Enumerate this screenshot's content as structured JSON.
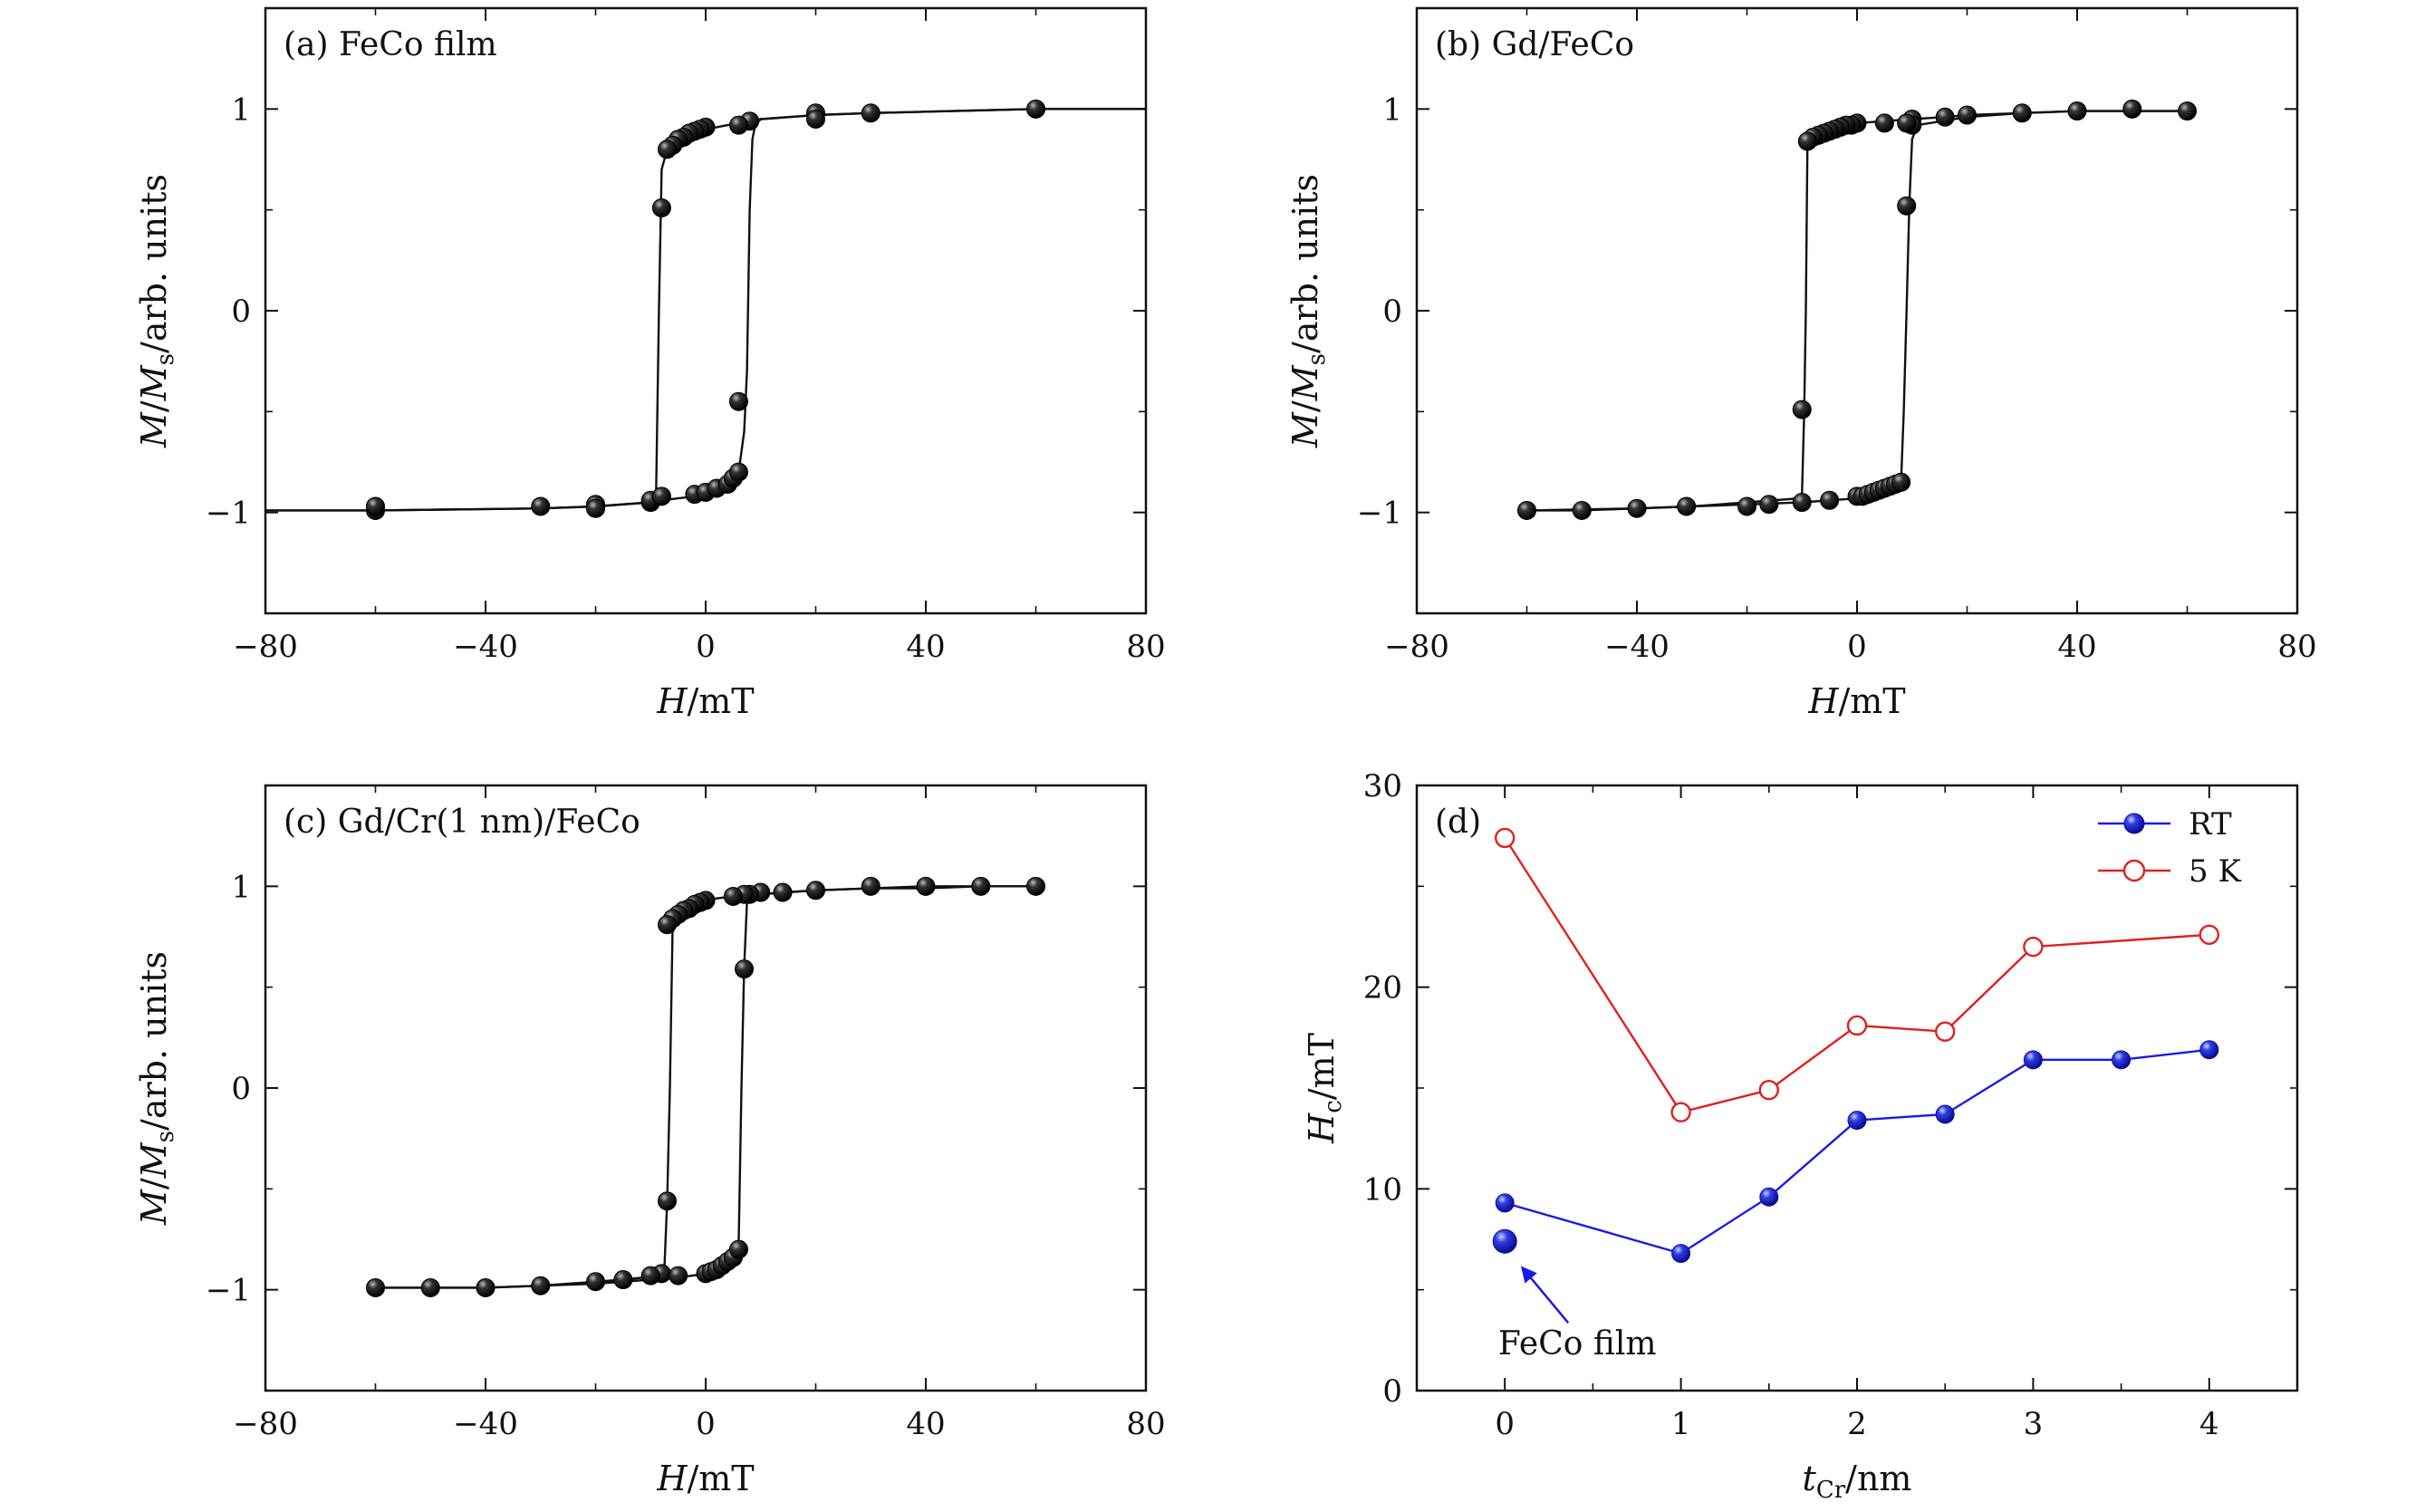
{
  "chart_data": [
    {
      "panel": "a",
      "type": "line",
      "title": "(a) FeCo film",
      "xlabel": "H/mT",
      "ylabel": "M/Ms/arb. units",
      "ylabel_parts": {
        "m": "M",
        "sep1": "/",
        "ms": "M",
        "ms_sub": "s",
        "rest": "/arb. units"
      },
      "xlabel_parts": {
        "var": "H",
        "rest": "/mT"
      },
      "xlim": [
        -80,
        80
      ],
      "ylim": [
        -1.5,
        1.5
      ],
      "xticks": [
        -80,
        -40,
        0,
        40,
        80
      ],
      "xtick_labels": [
        "−80",
        "−40",
        "0",
        "40",
        "80"
      ],
      "yticks": [
        -1,
        0,
        1
      ],
      "ytick_labels": [
        "−1",
        "0",
        "1"
      ],
      "grid": false,
      "series": [
        {
          "role": "descending branch",
          "x": [
            80,
            60,
            30,
            20,
            10,
            6,
            4,
            2,
            0,
            -1,
            -2,
            -3,
            -4,
            -5,
            -6,
            -7,
            -8,
            -8.5,
            -9,
            -9.5,
            -10,
            -20,
            -30,
            -60,
            -80
          ],
          "y": [
            1.0,
            1.0,
            0.98,
            0.97,
            0.95,
            0.93,
            0.92,
            0.91,
            0.9,
            0.89,
            0.88,
            0.87,
            0.86,
            0.84,
            0.82,
            0.8,
            0.7,
            0.0,
            -0.9,
            -0.93,
            -0.95,
            -0.97,
            -0.98,
            -0.99,
            -0.99
          ]
        },
        {
          "role": "ascending branch",
          "x": [
            -80,
            -60,
            -30,
            -20,
            -10,
            -8,
            -5,
            -2,
            0,
            2,
            4,
            5,
            6,
            7,
            7.5,
            8,
            8.5,
            9,
            10,
            20,
            30,
            60,
            80
          ],
          "y": [
            -0.99,
            -0.99,
            -0.98,
            -0.97,
            -0.95,
            -0.94,
            -0.93,
            -0.92,
            -0.9,
            -0.88,
            -0.86,
            -0.84,
            -0.8,
            -0.6,
            -0.3,
            0.5,
            0.85,
            0.92,
            0.95,
            0.97,
            0.98,
            1.0,
            1.0
          ]
        },
        {
          "role": "markers",
          "x": [
            60,
            30,
            20,
            20,
            8,
            6,
            0,
            -1,
            -2,
            -3,
            -4,
            -5,
            -6,
            -7,
            -8,
            -10,
            -20,
            -20,
            -30,
            -60,
            -60,
            -10,
            -8,
            -2,
            0,
            2,
            4,
            5,
            6,
            6
          ],
          "y": [
            1.0,
            0.98,
            0.98,
            0.95,
            0.94,
            0.92,
            0.91,
            0.9,
            0.89,
            0.88,
            0.86,
            0.85,
            0.82,
            0.8,
            0.51,
            -0.95,
            -0.96,
            -0.98,
            -0.97,
            -0.99,
            -0.97,
            -0.94,
            -0.92,
            -0.91,
            -0.9,
            -0.88,
            -0.86,
            -0.83,
            -0.8,
            -0.45
          ]
        }
      ]
    },
    {
      "panel": "b",
      "type": "line",
      "title": "(b) Gd/FeCo",
      "xlabel": "H/mT",
      "ylabel": "M/Ms/arb. units",
      "ylabel_parts": {
        "m": "M",
        "sep1": "/",
        "ms": "M",
        "ms_sub": "s",
        "rest": "/arb. units"
      },
      "xlabel_parts": {
        "var": "H",
        "rest": "/mT"
      },
      "xlim": [
        -80,
        80
      ],
      "ylim": [
        -1.5,
        1.5
      ],
      "xticks": [
        -80,
        -40,
        0,
        40,
        80
      ],
      "xtick_labels": [
        "−80",
        "−40",
        "0",
        "40",
        "80"
      ],
      "yticks": [
        -1,
        0,
        1
      ],
      "ytick_labels": [
        "−1",
        "0",
        "1"
      ],
      "grid": false,
      "series": [
        {
          "role": "descending branch",
          "x": [
            60,
            50,
            40,
            30,
            20,
            16,
            10,
            5,
            0,
            -2,
            -4,
            -6,
            -8,
            -9,
            -9.3,
            -9.6,
            -10,
            -10.5,
            -20,
            -30,
            -40,
            -50,
            -60
          ],
          "y": [
            0.99,
            0.99,
            0.99,
            0.98,
            0.97,
            0.96,
            0.95,
            0.94,
            0.93,
            0.92,
            0.9,
            0.88,
            0.86,
            0.84,
            0.0,
            -0.5,
            -0.9,
            -0.93,
            -0.95,
            -0.97,
            -0.98,
            -0.99,
            -0.99
          ]
        },
        {
          "role": "ascending branch",
          "x": [
            -60,
            -40,
            -20,
            -10,
            -5,
            0,
            2,
            4,
            6,
            8,
            8.5,
            9,
            9.5,
            10,
            11,
            20,
            30,
            40,
            50,
            60
          ],
          "y": [
            -0.99,
            -0.98,
            -0.96,
            -0.95,
            -0.94,
            -0.93,
            -0.92,
            -0.9,
            -0.88,
            -0.85,
            -0.5,
            0.0,
            0.52,
            0.85,
            0.92,
            0.96,
            0.98,
            0.99,
            0.99,
            0.99
          ]
        },
        {
          "role": "markers",
          "x": [
            60,
            50,
            40,
            30,
            20,
            16,
            10,
            10,
            5,
            0,
            -1,
            -2,
            -3,
            -4,
            -5,
            -6,
            -7,
            -8,
            -9,
            -10,
            -10,
            -16,
            -20,
            -31,
            -40,
            -50,
            -60,
            -5,
            0,
            1,
            2,
            3,
            4,
            5,
            6,
            7,
            8,
            9,
            9
          ],
          "y": [
            0.99,
            1.0,
            0.99,
            0.98,
            0.97,
            0.96,
            0.95,
            0.92,
            0.93,
            0.93,
            0.92,
            0.92,
            0.91,
            0.9,
            0.89,
            0.88,
            0.87,
            0.86,
            0.84,
            -0.49,
            -0.95,
            -0.96,
            -0.97,
            -0.97,
            -0.98,
            -0.99,
            -0.99,
            -0.94,
            -0.92,
            -0.92,
            -0.91,
            -0.9,
            -0.89,
            -0.88,
            -0.87,
            -0.86,
            -0.85,
            0.52,
            0.93
          ]
        }
      ]
    },
    {
      "panel": "c",
      "type": "line",
      "title": "(c) Gd/Cr(1 nm)/FeCo",
      "xlabel": "H/mT",
      "ylabel": "M/Ms/arb. units",
      "ylabel_parts": {
        "m": "M",
        "sep1": "/",
        "ms": "M",
        "ms_sub": "s",
        "rest": "/arb. units"
      },
      "xlabel_parts": {
        "var": "H",
        "rest": "/mT"
      },
      "xlim": [
        -80,
        80
      ],
      "ylim": [
        -1.5,
        1.5
      ],
      "xticks": [
        -80,
        -40,
        0,
        40,
        80
      ],
      "xtick_labels": [
        "−80",
        "−40",
        "0",
        "40",
        "80"
      ],
      "yticks": [
        -1,
        0,
        1
      ],
      "ytick_labels": [
        "−1",
        "0",
        "1"
      ],
      "grid": false,
      "series": [
        {
          "role": "descending branch",
          "x": [
            60,
            50,
            40,
            30,
            20,
            14,
            10,
            8,
            5,
            2,
            0,
            -2,
            -4,
            -6,
            -6.5,
            -7,
            -7.5,
            -8,
            -15,
            -20,
            -30,
            -40,
            -50,
            -60
          ],
          "y": [
            1.0,
            1.0,
            0.99,
            0.99,
            0.98,
            0.97,
            0.96,
            0.96,
            0.95,
            0.94,
            0.93,
            0.9,
            0.86,
            0.8,
            0.0,
            -0.56,
            -0.9,
            -0.93,
            -0.95,
            -0.96,
            -0.98,
            -0.99,
            -0.99,
            -0.99
          ]
        },
        {
          "role": "ascending branch",
          "x": [
            -60,
            -40,
            -20,
            -10,
            -5,
            0,
            2,
            4,
            5,
            6,
            6.5,
            7,
            7.5,
            8,
            10,
            20,
            30,
            40,
            50,
            60
          ],
          "y": [
            -0.99,
            -0.99,
            -0.97,
            -0.95,
            -0.94,
            -0.92,
            -0.9,
            -0.87,
            -0.84,
            -0.78,
            0.0,
            0.6,
            0.92,
            0.95,
            0.96,
            0.98,
            0.99,
            1.0,
            1.0,
            1.0
          ]
        },
        {
          "role": "markers",
          "x": [
            60,
            50,
            40,
            30,
            20,
            14,
            10,
            8,
            7,
            5,
            0,
            -1,
            -2,
            -3,
            -4,
            -5,
            -6,
            -7,
            -7,
            -8,
            -10,
            -15,
            -20,
            -30,
            -40,
            -50,
            -60,
            -5,
            0,
            1,
            2,
            3,
            4,
            5,
            6,
            7
          ],
          "y": [
            1.0,
            1.0,
            1.0,
            1.0,
            0.98,
            0.97,
            0.97,
            0.96,
            0.96,
            0.95,
            0.93,
            0.92,
            0.91,
            0.89,
            0.88,
            0.86,
            0.84,
            0.81,
            -0.56,
            -0.92,
            -0.93,
            -0.95,
            -0.96,
            -0.98,
            -0.99,
            -0.99,
            -0.99,
            -0.93,
            -0.92,
            -0.91,
            -0.9,
            -0.88,
            -0.86,
            -0.84,
            -0.8,
            0.59
          ]
        }
      ]
    },
    {
      "panel": "d",
      "type": "line",
      "title": "(d)",
      "xlabel": "tCr/nm",
      "ylabel": "Hc/mT",
      "xlabel_parts": {
        "var": "t",
        "sub": "Cr",
        "rest": "/nm"
      },
      "ylabel_parts": {
        "var": "H",
        "sub": "c",
        "rest": "/mT"
      },
      "xlim": [
        -0.5,
        4.5
      ],
      "ylim": [
        0,
        30
      ],
      "xticks": [
        0,
        1,
        2,
        3,
        4
      ],
      "xtick_labels": [
        "0",
        "1",
        "2",
        "3",
        "4"
      ],
      "yticks": [
        0,
        10,
        20,
        30
      ],
      "ytick_labels": [
        "0",
        "10",
        "20",
        "30"
      ],
      "grid": false,
      "legend_position": "top-right",
      "series": [
        {
          "name": "RT",
          "color": "#1a1ae6",
          "marker": "filled-sphere",
          "x": [
            0,
            1,
            1.5,
            2,
            2.5,
            3,
            3.5,
            4
          ],
          "y": [
            9.3,
            6.8,
            9.6,
            13.4,
            13.7,
            16.4,
            16.4,
            16.9
          ]
        },
        {
          "name": "5 K",
          "color": "#e02020",
          "marker": "open-circle",
          "x": [
            0,
            1,
            1.5,
            2,
            2.5,
            3,
            4
          ],
          "y": [
            27.4,
            13.8,
            14.9,
            18.1,
            17.8,
            22.0,
            22.6
          ]
        }
      ],
      "annotation": {
        "text": "FeCo film",
        "x": 0,
        "y": 7.4,
        "color": "#1a1ae6"
      }
    }
  ]
}
